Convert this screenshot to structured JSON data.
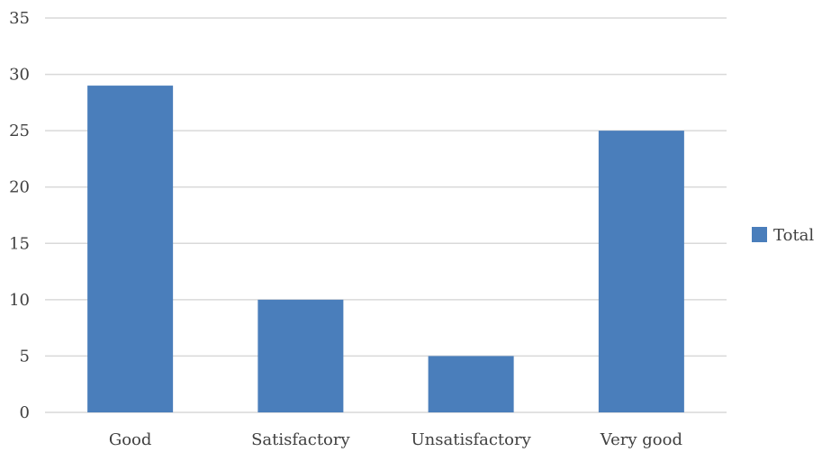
{
  "chart_data": {
    "type": "bar",
    "categories": [
      "Good",
      "Satisfactory",
      "Unsatisfactory",
      "Very good"
    ],
    "series": [
      {
        "name": "Total",
        "values": [
          29,
          10,
          5,
          25
        ],
        "color": "#4a7ebb"
      }
    ],
    "ylim": [
      0,
      35
    ],
    "yticks": [
      0,
      5,
      10,
      15,
      20,
      25,
      30,
      35
    ],
    "grid": true,
    "gridColor": "#d9d9d9",
    "legend": "right"
  }
}
